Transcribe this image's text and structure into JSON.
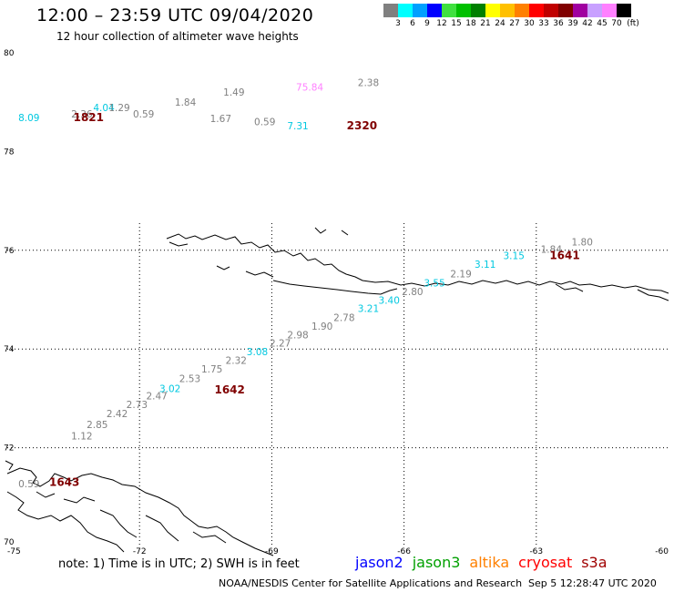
{
  "header": {
    "title": "12:00 – 23:59 UTC 09/04/2020",
    "subtitle": "12 hour collection of altimeter wave heights"
  },
  "legend": {
    "unit": "(ft)",
    "entries": [
      {
        "label": "3",
        "color": "#808080"
      },
      {
        "label": "6",
        "color": "#00ffff"
      },
      {
        "label": "9",
        "color": "#00a0ff"
      },
      {
        "label": "12",
        "color": "#0000ff"
      },
      {
        "label": "15",
        "color": "#40e040"
      },
      {
        "label": "18",
        "color": "#00c000"
      },
      {
        "label": "21",
        "color": "#008000"
      },
      {
        "label": "24",
        "color": "#ffff00"
      },
      {
        "label": "27",
        "color": "#ffc000"
      },
      {
        "label": "30",
        "color": "#ff8000"
      },
      {
        "label": "33",
        "color": "#ff0000"
      },
      {
        "label": "36",
        "color": "#c00000"
      },
      {
        "label": "39",
        "color": "#800000"
      },
      {
        "label": "42",
        "color": "#a000a0"
      },
      {
        "label": "45",
        "color": "#c8a0ff"
      },
      {
        "label": "70",
        "color": "#ff80ff"
      },
      {
        "label": "",
        "color": "#000000"
      }
    ]
  },
  "axes": {
    "lon_ticks": [
      "-75",
      "-72",
      "-69",
      "-66",
      "-63",
      "-60"
    ],
    "lat_ticks": [
      "80",
      "78",
      "76",
      "74",
      "72",
      "70"
    ]
  },
  "wave_readings": [
    {
      "value": "8.09",
      "color": "#00c8e0",
      "lon": -74.75,
      "lat": 78.62
    },
    {
      "value": "4.04",
      "color": "#00c8e0",
      "lon": -73.05,
      "lat": 78.82
    },
    {
      "value": "2.36",
      "color": "#808080",
      "lon": -73.55,
      "lat": 78.69
    },
    {
      "value": "1.29",
      "color": "#808080",
      "lon": -72.7,
      "lat": 78.82
    },
    {
      "value": "0.59",
      "color": "#808080",
      "lon": -72.15,
      "lat": 78.69
    },
    {
      "value": "1.84",
      "color": "#808080",
      "lon": -71.2,
      "lat": 78.93
    },
    {
      "value": "1.67",
      "color": "#808080",
      "lon": -70.4,
      "lat": 78.6
    },
    {
      "value": "1.49",
      "color": "#808080",
      "lon": -70.1,
      "lat": 79.13
    },
    {
      "value": "0.59",
      "color": "#808080",
      "lon": -69.4,
      "lat": 78.53
    },
    {
      "value": "75.84",
      "color": "#ff80ff",
      "lon": -68.45,
      "lat": 79.23
    },
    {
      "value": "7.31",
      "color": "#00c8e0",
      "lon": -68.65,
      "lat": 78.45
    },
    {
      "value": "2.38",
      "color": "#808080",
      "lon": -67.05,
      "lat": 79.33
    },
    {
      "value": "1.84",
      "color": "#808080",
      "lon": -62.9,
      "lat": 75.95
    },
    {
      "value": "1.80",
      "color": "#808080",
      "lon": -62.2,
      "lat": 76.1
    },
    {
      "value": "3.15",
      "color": "#00c8e0",
      "lon": -63.75,
      "lat": 75.82
    },
    {
      "value": "3.11",
      "color": "#00c8e0",
      "lon": -64.4,
      "lat": 75.65
    },
    {
      "value": "2.19",
      "color": "#808080",
      "lon": -64.95,
      "lat": 75.45
    },
    {
      "value": "3.55",
      "color": "#00c8e0",
      "lon": -65.55,
      "lat": 75.27
    },
    {
      "value": "2.80",
      "color": "#808080",
      "lon": -66.05,
      "lat": 75.09
    },
    {
      "value": "3.40",
      "color": "#00c8e0",
      "lon": -66.58,
      "lat": 74.92
    },
    {
      "value": "3.21",
      "color": "#00c8e0",
      "lon": -67.05,
      "lat": 74.75
    },
    {
      "value": "2.78",
      "color": "#808080",
      "lon": -67.6,
      "lat": 74.57
    },
    {
      "value": "1.90",
      "color": "#808080",
      "lon": -68.1,
      "lat": 74.39
    },
    {
      "value": "2.98",
      "color": "#808080",
      "lon": -68.65,
      "lat": 74.22
    },
    {
      "value": "2.27",
      "color": "#808080",
      "lon": -69.05,
      "lat": 74.05
    },
    {
      "value": "3.08",
      "color": "#00c8e0",
      "lon": -69.57,
      "lat": 73.87
    },
    {
      "value": "2.32",
      "color": "#808080",
      "lon": -70.05,
      "lat": 73.7
    },
    {
      "value": "1.75",
      "color": "#808080",
      "lon": -70.6,
      "lat": 73.52
    },
    {
      "value": "2.53",
      "color": "#808080",
      "lon": -71.1,
      "lat": 73.33
    },
    {
      "value": "3.02",
      "color": "#00c8e0",
      "lon": -71.55,
      "lat": 73.13
    },
    {
      "value": "2.47",
      "color": "#808080",
      "lon": -71.85,
      "lat": 72.98
    },
    {
      "value": "2.73",
      "color": "#808080",
      "lon": -72.3,
      "lat": 72.8
    },
    {
      "value": "2.42",
      "color": "#808080",
      "lon": -72.75,
      "lat": 72.62
    },
    {
      "value": "2.85",
      "color": "#808080",
      "lon": -73.2,
      "lat": 72.4
    },
    {
      "value": "1.12",
      "color": "#808080",
      "lon": -73.55,
      "lat": 72.17
    },
    {
      "value": "0.59",
      "color": "#808080",
      "lon": -74.75,
      "lat": 71.2
    }
  ],
  "pass_times": [
    {
      "label": "1821",
      "lon": -73.5,
      "lat": 78.62
    },
    {
      "label": "2320",
      "lon": -67.3,
      "lat": 78.45
    },
    {
      "label": "1641",
      "lon": -62.7,
      "lat": 75.82
    },
    {
      "label": "1642",
      "lon": -70.3,
      "lat": 73.1
    },
    {
      "label": "1643",
      "lon": -74.05,
      "lat": 71.23
    }
  ],
  "footer": {
    "note": "note:  1) Time is in UTC;  2) SWH is in feet",
    "satellites": [
      {
        "name": "jason2",
        "color": "#0000ff"
      },
      {
        "name": "jason3",
        "color": "#00a000"
      },
      {
        "name": "altika",
        "color": "#ff8000"
      },
      {
        "name": "cryosat",
        "color": "#ff0000"
      },
      {
        "name": "s3a",
        "color": "#a00000"
      }
    ],
    "credit": "NOAA/NESDIS Center for Satellite Applications and Research",
    "timestamp": "Sep  5 12:28:47 UTC 2020"
  }
}
